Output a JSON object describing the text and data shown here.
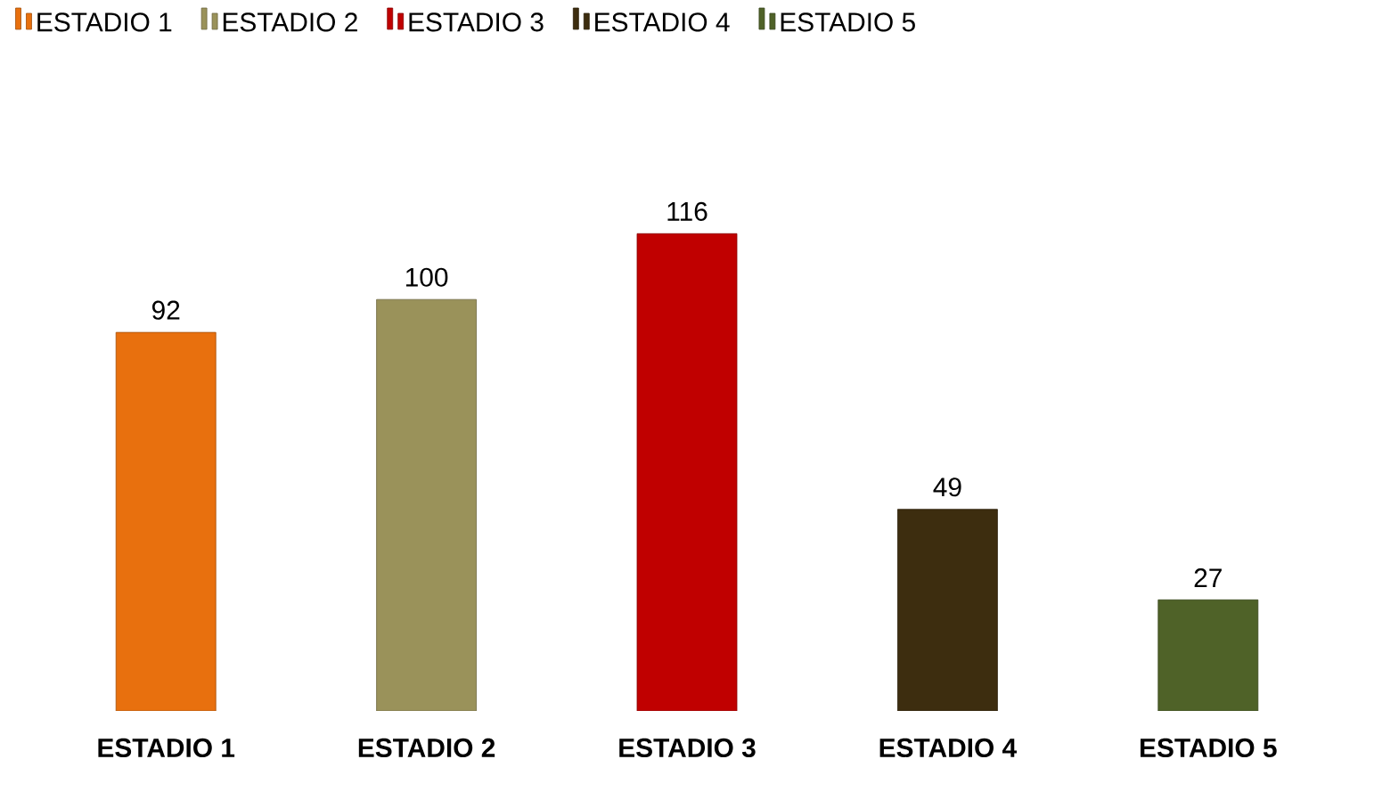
{
  "chart_data": {
    "type": "bar",
    "categories": [
      "ESTADIO 1",
      "ESTADIO 2",
      "ESTADIO 3",
      "ESTADIO 4",
      "ESTADIO 5"
    ],
    "series": [
      {
        "name": "ESTADIO 1",
        "color": "#e8700e",
        "values": [
          92,
          null,
          null,
          null,
          null
        ]
      },
      {
        "name": "ESTADIO 2",
        "color": "#9a925a",
        "values": [
          null,
          100,
          null,
          null,
          null
        ]
      },
      {
        "name": "ESTADIO 3",
        "color": "#c00000",
        "values": [
          null,
          null,
          116,
          null,
          null
        ]
      },
      {
        "name": "ESTADIO 4",
        "color": "#3d2d0f",
        "values": [
          null,
          null,
          null,
          49,
          null
        ]
      },
      {
        "name": "ESTADIO 5",
        "color": "#4f6228",
        "values": [
          null,
          null,
          null,
          null,
          27
        ]
      }
    ],
    "data_labels": true,
    "legend": "top"
  }
}
